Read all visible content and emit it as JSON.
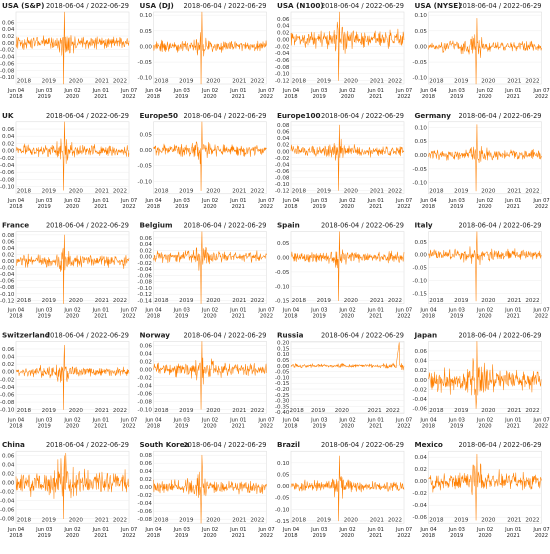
{
  "colors": {
    "series": "#ff7f00"
  },
  "chart_data": [
    {
      "type": "line",
      "title": "USA (S&P)",
      "date_range": "2018-06-04 / 2022-06-29",
      "y_ticks": [
        "0.06",
        "0.04",
        "0.02",
        "0.00",
        "-0.02",
        "-0.04",
        "-0.06",
        "-0.08",
        "-0.10"
      ],
      "ylim": [
        -0.12,
        0.09
      ],
      "year_ticks": [
        "2018",
        "2019",
        "2020",
        "2021",
        "2022"
      ],
      "year_x": [
        0.07,
        0.29,
        0.53,
        0.76,
        0.92
      ],
      "date_ticks": [
        [
          "Jun 04",
          "2018"
        ],
        [
          "Jun 03",
          "2019"
        ],
        [
          "Jun 02",
          "2020"
        ],
        [
          "Jun 01",
          "2021"
        ],
        [
          "Jun 07",
          "2022"
        ]
      ],
      "vol": 0.013,
      "crash_min": -0.12,
      "crash_max": 0.09,
      "gap": false
    },
    {
      "type": "line",
      "title": "USA (DJ)",
      "date_range": "2018-06-04 / 2022-06-29",
      "y_ticks": [
        "0.10",
        "0.05",
        "0.00",
        "-0.05",
        "-0.10"
      ],
      "ylim": [
        -0.12,
        0.11
      ],
      "year_ticks": [
        "2018",
        "2019",
        "2020",
        "2021",
        "2022"
      ],
      "year_x": [
        0.07,
        0.29,
        0.53,
        0.76,
        0.92
      ],
      "date_ticks": [
        [
          "Jun 04",
          "2018"
        ],
        [
          "Jun 03",
          "2019"
        ],
        [
          "Jun 02",
          "2020"
        ],
        [
          "Jun 01",
          "2021"
        ],
        [
          "Jun 07",
          "2022"
        ]
      ],
      "vol": 0.013,
      "crash_min": -0.13,
      "crash_max": 0.11,
      "gap": false
    },
    {
      "type": "line",
      "title": "USA (N100)",
      "date_range": "2018-06-04 / 2022-06-29",
      "y_ticks": [
        "0.06",
        "0.04",
        "0.02",
        "0.00",
        "-0.02",
        "-0.04",
        "-0.06",
        "-0.08",
        "-0.10",
        "-0.12"
      ],
      "ylim": [
        -0.13,
        0.08
      ],
      "year_ticks": [
        "2018",
        "2019",
        "2020",
        "2021",
        "2022"
      ],
      "year_x": [
        0.07,
        0.29,
        0.53,
        0.76,
        0.92
      ],
      "date_ticks": [
        [
          "Jun 04",
          "2018"
        ],
        [
          "Jun 03",
          "2019"
        ],
        [
          "Jun 02",
          "2020"
        ],
        [
          "Jun 01",
          "2021"
        ],
        [
          "Jun 07",
          "2022"
        ]
      ],
      "vol": 0.017,
      "crash_min": -0.12,
      "crash_max": 0.09,
      "gap": false
    },
    {
      "type": "line",
      "title": "USA (NYSE)",
      "date_range": "2018-06-04 / 2022-06-29",
      "y_ticks": [
        "0.10",
        "0.05",
        "0.00",
        "-0.05",
        "-0.10"
      ],
      "ylim": [
        -0.12,
        0.11
      ],
      "year_ticks": [
        "2018",
        "2019",
        "2020",
        "2021",
        "2022"
      ],
      "year_x": [
        0.07,
        0.29,
        0.53,
        0.76,
        0.92
      ],
      "date_ticks": [
        [
          "Jun 04",
          "2018"
        ],
        [
          "Jun 03",
          "2019"
        ],
        [
          "Jun 02",
          "2020"
        ],
        [
          "Jun 01",
          "2021"
        ],
        [
          "Jun 07",
          "2022"
        ]
      ],
      "vol": 0.012,
      "crash_min": -0.12,
      "crash_max": 0.09,
      "gap": false
    },
    {
      "type": "line",
      "title": "UK",
      "date_range": "2018-06-04 / 2022-06-29",
      "y_ticks": [
        "0.06",
        "0.04",
        "0.02",
        "0.00",
        "-0.02",
        "-0.04",
        "-0.06",
        "-0.08",
        "-0.10"
      ],
      "ylim": [
        -0.12,
        0.08
      ],
      "year_ticks": [
        "2018",
        "2019",
        "2020",
        "2021",
        "2022"
      ],
      "year_x": [
        0.07,
        0.29,
        0.53,
        0.76,
        0.92
      ],
      "date_ticks": [
        [
          "Jun 04",
          "2018"
        ],
        [
          "Jun 03",
          "2019"
        ],
        [
          "Jun 02",
          "2020"
        ],
        [
          "Jun 01",
          "2021"
        ],
        [
          "Jun 07",
          "2022"
        ]
      ],
      "vol": 0.011,
      "crash_min": -0.11,
      "crash_max": 0.09,
      "gap": false
    },
    {
      "type": "line",
      "title": "Europe50",
      "date_range": "2018-06-04 / 2022-06-29",
      "y_ticks": [
        "0.05",
        "0.00",
        "-0.05",
        "-0.10"
      ],
      "ylim": [
        -0.14,
        0.09
      ],
      "year_ticks": [
        "2018",
        "2019",
        "2020",
        "2021",
        "2022"
      ],
      "year_x": [
        0.07,
        0.29,
        0.53,
        0.76,
        0.92
      ],
      "date_ticks": [
        [
          "Jun 04",
          "2018"
        ],
        [
          "Jun 03",
          "2019"
        ],
        [
          "Jun 02",
          "2020"
        ],
        [
          "Jun 01",
          "2021"
        ],
        [
          "Jun 07",
          "2022"
        ]
      ],
      "vol": 0.013,
      "crash_min": -0.13,
      "crash_max": 0.09,
      "gap": false
    },
    {
      "type": "line",
      "title": "Europe100",
      "date_range": "2018-06-04 / 2022-06-29",
      "y_ticks": [
        "0.08",
        "0.06",
        "0.04",
        "0.02",
        "0.00",
        "-0.02",
        "-0.04",
        "-0.06",
        "-0.08",
        "-0.10",
        "-0.12"
      ],
      "ylim": [
        -0.13,
        0.09
      ],
      "year_ticks": [
        "2018",
        "2019",
        "2020",
        "2021",
        "2022"
      ],
      "year_x": [
        0.07,
        0.29,
        0.53,
        0.76,
        0.92
      ],
      "date_ticks": [
        [
          "Jun 04",
          "2018"
        ],
        [
          "Jun 03",
          "2019"
        ],
        [
          "Jun 02",
          "2020"
        ],
        [
          "Jun 01",
          "2021"
        ],
        [
          "Jun 07",
          "2022"
        ]
      ],
      "vol": 0.012,
      "crash_min": -0.12,
      "crash_max": 0.08,
      "gap": false
    },
    {
      "type": "line",
      "title": "Germany",
      "date_range": "2018-06-04 / 2022-06-29",
      "y_ticks": [
        "0.10",
        "0.05",
        "0.00",
        "-0.05",
        "-0.10"
      ],
      "ylim": [
        -0.14,
        0.12
      ],
      "year_ticks": [
        "2018",
        "2019",
        "2020",
        "2021",
        "2022"
      ],
      "year_x": [
        0.07,
        0.29,
        0.53,
        0.76,
        0.92
      ],
      "date_ticks": [
        [
          "Jun 04",
          "2018"
        ],
        [
          "Jun 03",
          "2019"
        ],
        [
          "Jun 02",
          "2020"
        ],
        [
          "Jun 01",
          "2021"
        ],
        [
          "Jun 07",
          "2022"
        ]
      ],
      "vol": 0.013,
      "crash_min": -0.13,
      "crash_max": 0.11,
      "gap": false
    },
    {
      "type": "line",
      "title": "France",
      "date_range": "2018-06-04 / 2022-06-29",
      "y_ticks": [
        "0.08",
        "0.06",
        "0.04",
        "0.02",
        "0.00",
        "-0.02",
        "-0.04",
        "-0.06",
        "-0.08",
        "-0.10",
        "-0.12"
      ],
      "ylim": [
        -0.13,
        0.09
      ],
      "year_ticks": [
        "2018",
        "2019",
        "2020",
        "2021",
        "2022"
      ],
      "year_x": [
        0.07,
        0.29,
        0.53,
        0.76,
        0.92
      ],
      "date_ticks": [
        [
          "Jun 04",
          "2018"
        ],
        [
          "Jun 03",
          "2019"
        ],
        [
          "Jun 02",
          "2020"
        ],
        [
          "Jun 01",
          "2021"
        ],
        [
          "Jun 07",
          "2022"
        ]
      ],
      "vol": 0.013,
      "crash_min": -0.13,
      "crash_max": 0.08,
      "gap": false
    },
    {
      "type": "line",
      "title": "Belgium",
      "date_range": "2018-06-04 / 2022-06-29",
      "y_ticks": [
        "0.06",
        "0.04",
        "0.02",
        "0.00",
        "-0.02",
        "-0.04",
        "-0.06",
        "-0.08",
        "-0.10",
        "-0.12",
        "-0.14"
      ],
      "ylim": [
        -0.15,
        0.08
      ],
      "year_ticks": [
        "2018",
        "2019",
        "2020",
        "2021",
        "2022"
      ],
      "year_x": [
        0.07,
        0.29,
        0.53,
        0.76,
        0.92
      ],
      "date_ticks": [
        [
          "Jun 04",
          "2018"
        ],
        [
          "Jun 03",
          "2019"
        ],
        [
          "Jun 02",
          "2020"
        ],
        [
          "Jun 01",
          "2021"
        ],
        [
          "Jun 07",
          "2022"
        ]
      ],
      "vol": 0.012,
      "crash_min": -0.15,
      "crash_max": 0.08,
      "gap": false
    },
    {
      "type": "line",
      "title": "Spain",
      "date_range": "2018-06-04 / 2022-06-29",
      "y_ticks": [
        "0.05",
        "0.00",
        "-0.05",
        "-0.10",
        "-0.15"
      ],
      "ylim": [
        -0.16,
        0.09
      ],
      "year_ticks": [
        "2018",
        "2019",
        "2020",
        "2021",
        "2022"
      ],
      "year_x": [
        0.07,
        0.29,
        0.53,
        0.76,
        0.92
      ],
      "date_ticks": [
        [
          "Jun 04",
          "2018"
        ],
        [
          "Jun 03",
          "2019"
        ],
        [
          "Jun 02",
          "2020"
        ],
        [
          "Jun 01",
          "2021"
        ],
        [
          "Jun 07",
          "2022"
        ]
      ],
      "vol": 0.013,
      "crash_min": -0.15,
      "crash_max": 0.09,
      "gap": false
    },
    {
      "type": "line",
      "title": "Italy",
      "date_range": "2018-06-04 / 2022-06-29",
      "y_ticks": [
        "0.05",
        "0.00",
        "-0.05",
        "-0.10",
        "-0.15"
      ],
      "ylim": [
        -0.19,
        0.09
      ],
      "year_ticks": [
        "2018",
        "2019",
        "2020",
        "2021",
        "2022"
      ],
      "year_x": [
        0.07,
        0.29,
        0.53,
        0.76,
        0.92
      ],
      "date_ticks": [
        [
          "Jun 04",
          "2018"
        ],
        [
          "Jun 03",
          "2019"
        ],
        [
          "Jun 02",
          "2020"
        ],
        [
          "Jun 01",
          "2021"
        ],
        [
          "Jun 07",
          "2022"
        ]
      ],
      "vol": 0.014,
      "crash_min": -0.18,
      "crash_max": 0.09,
      "gap": false
    },
    {
      "type": "line",
      "title": "Switzerland",
      "date_range": "2018-06-04 / 2022-06-29",
      "y_ticks": [
        "0.06",
        "0.04",
        "0.02",
        "0.00",
        "-0.02",
        "-0.04",
        "-0.06",
        "-0.08",
        "-0.10"
      ],
      "ylim": [
        -0.11,
        0.08
      ],
      "year_ticks": [
        "2018",
        "2019",
        "2020",
        "2021",
        "2022"
      ],
      "year_x": [
        0.07,
        0.29,
        0.53,
        0.76,
        0.92
      ],
      "date_ticks": [
        [
          "Jun 04",
          "2018"
        ],
        [
          "Jun 03",
          "2019"
        ],
        [
          "Jun 02",
          "2020"
        ],
        [
          "Jun 01",
          "2021"
        ],
        [
          "Jun 07",
          "2022"
        ]
      ],
      "vol": 0.01,
      "crash_min": -0.1,
      "crash_max": 0.07,
      "gap": false
    },
    {
      "type": "line",
      "title": "Norway",
      "date_range": "2018-06-04 / 2022-06-29",
      "y_ticks": [
        "0.06",
        "0.04",
        "0.02",
        "0.00",
        "-0.02",
        "-0.04",
        "-0.06",
        "-0.08",
        "-0.10"
      ],
      "ylim": [
        -0.11,
        0.07
      ],
      "year_ticks": [
        "2018",
        "2019",
        "2020",
        "2021",
        "2022"
      ],
      "year_x": [
        0.07,
        0.29,
        0.53,
        0.76,
        0.92
      ],
      "date_ticks": [
        [
          "Jun 04",
          "2018"
        ],
        [
          "Jun 03",
          "2019"
        ],
        [
          "Jun 02",
          "2020"
        ],
        [
          "Jun 01",
          "2021"
        ],
        [
          "Jun 07",
          "2022"
        ]
      ],
      "vol": 0.012,
      "crash_min": -0.1,
      "crash_max": 0.07,
      "gap": false
    },
    {
      "type": "line",
      "title": "Russia",
      "date_range": "2018-06-04 / 2022-06-29",
      "y_ticks": [
        "0.20",
        "0.15",
        "0.10",
        "0.05",
        "0.00",
        "-0.05",
        "-0.10",
        "-0.15",
        "-0.20",
        "-0.25",
        "-0.30",
        "-0.35",
        "-0.40"
      ],
      "ylim": [
        -0.41,
        0.21
      ],
      "year_ticks": [
        "2018",
        "2019",
        "2020",
        "2021",
        "2022"
      ],
      "year_x": [
        0.05,
        0.24,
        0.45,
        0.74,
        0.9
      ],
      "date_ticks": [
        [
          "Jun 04",
          "2018"
        ],
        [
          "Jun 03",
          "2019"
        ],
        [
          "Jun 02",
          "2020"
        ],
        [
          "Jun 01",
          "2021"
        ],
        [
          "Jun 07",
          "2022"
        ]
      ],
      "vol": 0.012,
      "crash_min": -0.39,
      "crash_max": 0.2,
      "crash_pos": 0.95,
      "gap": true
    },
    {
      "type": "line",
      "title": "Japan",
      "date_range": "2018-06-04 / 2022-06-29",
      "y_ticks": [
        "0.06",
        "0.04",
        "0.02",
        "0.00",
        "-0.02",
        "-0.04",
        "-0.06"
      ],
      "ylim": [
        -0.07,
        0.08
      ],
      "year_ticks": [
        "2018",
        "2019",
        "2020",
        "2021",
        "2022"
      ],
      "year_x": [
        0.07,
        0.29,
        0.53,
        0.76,
        0.92
      ],
      "date_ticks": [
        [
          "Jun 04",
          "2018"
        ],
        [
          "Jun 03",
          "2019"
        ],
        [
          "Jun 02",
          "2020"
        ],
        [
          "Jun 01",
          "2021"
        ],
        [
          "Jun 07",
          "2022"
        ]
      ],
      "vol": 0.016,
      "crash_min": -0.06,
      "crash_max": 0.08,
      "gap": false
    },
    {
      "type": "line",
      "title": "China",
      "date_range": "2018-06-04 / 2022-06-29",
      "y_ticks": [
        "0.06",
        "0.04",
        "0.02",
        "0.00",
        "-0.02",
        "-0.04",
        "-0.06",
        "-0.08"
      ],
      "ylim": [
        -0.09,
        0.07
      ],
      "year_ticks": [
        "2018",
        "2019",
        "2020",
        "2021",
        "2022"
      ],
      "year_x": [
        0.07,
        0.29,
        0.53,
        0.76,
        0.92
      ],
      "date_ticks": [
        [
          "Jun 04",
          "2018"
        ],
        [
          "Jun 03",
          "2019"
        ],
        [
          "Jun 02",
          "2020"
        ],
        [
          "Jun 01",
          "2021"
        ],
        [
          "Jun 07",
          "2022"
        ]
      ],
      "vol": 0.017,
      "crash_min": -0.08,
      "crash_max": 0.06,
      "gap": false
    },
    {
      "type": "line",
      "title": "South Korea",
      "date_range": "2018-06-04 / 2022-06-29",
      "y_ticks": [
        "0.08",
        "0.06",
        "0.04",
        "0.02",
        "0.00",
        "-0.02",
        "-0.04",
        "-0.06",
        "-0.08"
      ],
      "ylim": [
        -0.09,
        0.09
      ],
      "year_ticks": [
        "2018",
        "2019",
        "2020",
        "2021",
        "2022"
      ],
      "year_x": [
        0.07,
        0.29,
        0.53,
        0.76,
        0.92
      ],
      "date_ticks": [
        [
          "Jun 04",
          "2018"
        ],
        [
          "Jun 03",
          "2019"
        ],
        [
          "Jun 02",
          "2020"
        ],
        [
          "Jun 01",
          "2021"
        ],
        [
          "Jun 07",
          "2022"
        ]
      ],
      "vol": 0.012,
      "crash_min": -0.09,
      "crash_max": 0.08,
      "gap": false
    },
    {
      "type": "line",
      "title": "Brazil",
      "date_range": "2018-06-04 / 2022-06-29",
      "y_ticks": [
        "0.10",
        "0.05",
        "0.00",
        "-0.05",
        "-0.10",
        "-0.15"
      ],
      "ylim": [
        -0.16,
        0.15
      ],
      "year_ticks": [
        "2018",
        "2019",
        "2020",
        "2021",
        "2022"
      ],
      "year_x": [
        0.07,
        0.29,
        0.53,
        0.76,
        0.92
      ],
      "date_ticks": [
        [
          "Jun 04",
          "2018"
        ],
        [
          "Jun 03",
          "2019"
        ],
        [
          "Jun 02",
          "2020"
        ],
        [
          "Jun 01",
          "2021"
        ],
        [
          "Jun 07",
          "2022"
        ]
      ],
      "vol": 0.017,
      "crash_min": -0.15,
      "crash_max": 0.13,
      "gap": false
    },
    {
      "type": "line",
      "title": "Mexico",
      "date_range": "2018-06-04 / 2022-06-29",
      "y_ticks": [
        "0.04",
        "0.02",
        "0.00",
        "-0.02",
        "-0.04",
        "-0.06"
      ],
      "ylim": [
        -0.07,
        0.05
      ],
      "year_ticks": [
        "2018",
        "2019",
        "2020",
        "2021",
        "2022"
      ],
      "year_x": [
        0.07,
        0.29,
        0.53,
        0.76,
        0.92
      ],
      "date_ticks": [
        [
          "Jun 04",
          "2018"
        ],
        [
          "Jun 03",
          "2019"
        ],
        [
          "Jun 02",
          "2020"
        ],
        [
          "Jun 01",
          "2021"
        ],
        [
          "Jun 07",
          "2022"
        ]
      ],
      "vol": 0.011,
      "crash_min": -0.065,
      "crash_max": 0.045,
      "gap": false
    }
  ]
}
